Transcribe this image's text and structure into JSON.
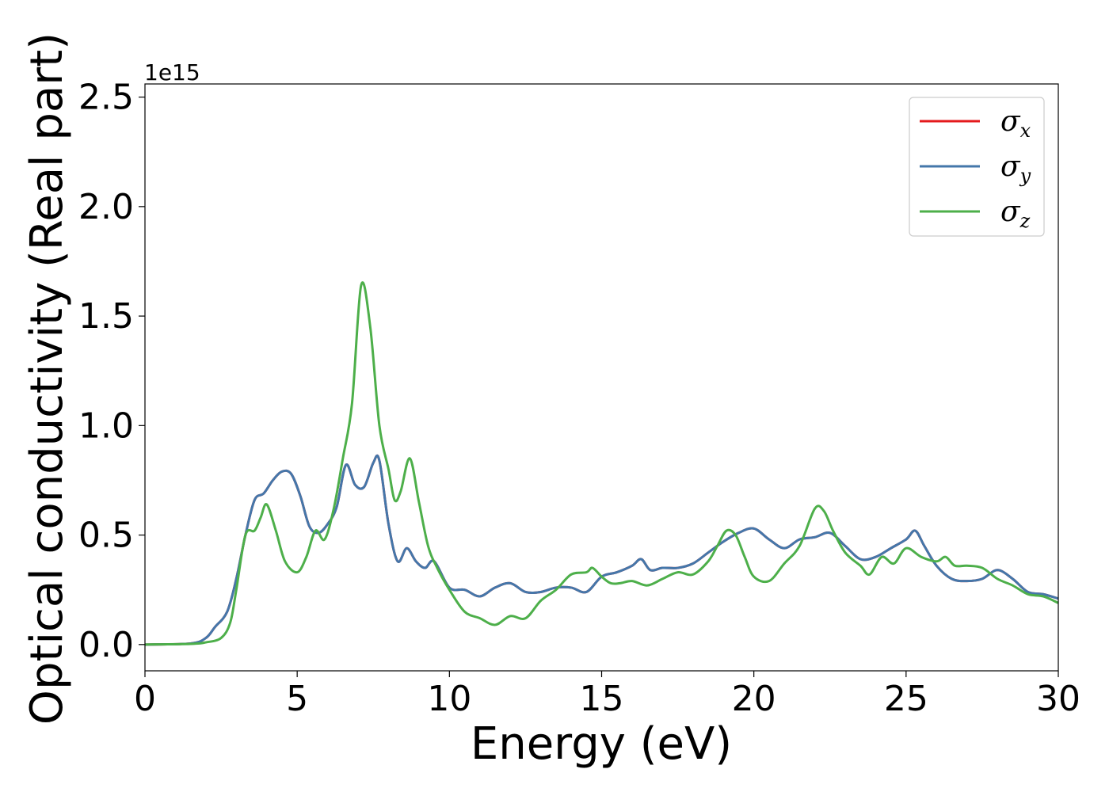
{
  "chart_data": {
    "type": "line",
    "xlabel": "Energy (eV)",
    "ylabel": "Optical conductivity (Real part)",
    "y_offset_label": "1e15",
    "xlim": [
      0,
      30
    ],
    "ylim": [
      -0.12,
      2.56
    ],
    "x_ticks": [
      0,
      5,
      10,
      15,
      20,
      25,
      30
    ],
    "x_tick_labels": [
      "0",
      "5",
      "10",
      "15",
      "20",
      "25",
      "30"
    ],
    "y_ticks": [
      0.0,
      0.5,
      1.0,
      1.5,
      2.0,
      2.5
    ],
    "y_tick_labels": [
      "0.0",
      "0.5",
      "1.0",
      "1.5",
      "2.0",
      "2.5"
    ],
    "grid": false,
    "legend_position": "top-right",
    "series": [
      {
        "name": "σx",
        "legend_main": "σ",
        "legend_sub": "x",
        "color": "#e41a1c",
        "data": [
          [
            0,
            0
          ],
          [
            1.5,
            0.005
          ],
          [
            2.0,
            0.03
          ],
          [
            2.3,
            0.08
          ],
          [
            2.7,
            0.15
          ],
          [
            3.0,
            0.3
          ],
          [
            3.3,
            0.5
          ],
          [
            3.6,
            0.66
          ],
          [
            3.9,
            0.69
          ],
          [
            4.2,
            0.75
          ],
          [
            4.5,
            0.79
          ],
          [
            4.8,
            0.78
          ],
          [
            5.1,
            0.68
          ],
          [
            5.4,
            0.54
          ],
          [
            5.7,
            0.51
          ],
          [
            6.0,
            0.55
          ],
          [
            6.3,
            0.63
          ],
          [
            6.6,
            0.82
          ],
          [
            6.9,
            0.73
          ],
          [
            7.2,
            0.72
          ],
          [
            7.5,
            0.83
          ],
          [
            7.7,
            0.84
          ],
          [
            8.0,
            0.55
          ],
          [
            8.3,
            0.38
          ],
          [
            8.6,
            0.44
          ],
          [
            8.9,
            0.38
          ],
          [
            9.2,
            0.35
          ],
          [
            9.5,
            0.38
          ],
          [
            10.0,
            0.26
          ],
          [
            10.5,
            0.25
          ],
          [
            11.0,
            0.22
          ],
          [
            11.5,
            0.26
          ],
          [
            12.0,
            0.28
          ],
          [
            12.5,
            0.24
          ],
          [
            13.0,
            0.24
          ],
          [
            13.5,
            0.26
          ],
          [
            14.0,
            0.26
          ],
          [
            14.5,
            0.24
          ],
          [
            15.0,
            0.31
          ],
          [
            15.5,
            0.33
          ],
          [
            16.0,
            0.36
          ],
          [
            16.3,
            0.39
          ],
          [
            16.6,
            0.34
          ],
          [
            17.0,
            0.35
          ],
          [
            17.5,
            0.35
          ],
          [
            18.0,
            0.37
          ],
          [
            18.5,
            0.42
          ],
          [
            19.0,
            0.47
          ],
          [
            19.5,
            0.51
          ],
          [
            20.0,
            0.53
          ],
          [
            20.5,
            0.48
          ],
          [
            21.0,
            0.44
          ],
          [
            21.5,
            0.48
          ],
          [
            22.0,
            0.49
          ],
          [
            22.5,
            0.51
          ],
          [
            23.0,
            0.45
          ],
          [
            23.5,
            0.39
          ],
          [
            24.0,
            0.4
          ],
          [
            24.5,
            0.44
          ],
          [
            25.0,
            0.48
          ],
          [
            25.3,
            0.52
          ],
          [
            25.6,
            0.45
          ],
          [
            26.0,
            0.36
          ],
          [
            26.5,
            0.3
          ],
          [
            27.0,
            0.29
          ],
          [
            27.5,
            0.3
          ],
          [
            28.0,
            0.34
          ],
          [
            28.5,
            0.3
          ],
          [
            29.0,
            0.24
          ],
          [
            29.5,
            0.23
          ],
          [
            30.0,
            0.21
          ]
        ]
      },
      {
        "name": "σy",
        "legend_main": "σ",
        "legend_sub": "y",
        "color": "#4477aa",
        "data": [
          [
            0,
            0
          ],
          [
            1.5,
            0.005
          ],
          [
            2.0,
            0.03
          ],
          [
            2.3,
            0.08
          ],
          [
            2.7,
            0.15
          ],
          [
            3.0,
            0.3
          ],
          [
            3.3,
            0.5
          ],
          [
            3.6,
            0.66
          ],
          [
            3.9,
            0.69
          ],
          [
            4.2,
            0.75
          ],
          [
            4.5,
            0.79
          ],
          [
            4.8,
            0.78
          ],
          [
            5.1,
            0.68
          ],
          [
            5.4,
            0.54
          ],
          [
            5.7,
            0.51
          ],
          [
            6.0,
            0.55
          ],
          [
            6.3,
            0.63
          ],
          [
            6.6,
            0.82
          ],
          [
            6.9,
            0.73
          ],
          [
            7.2,
            0.72
          ],
          [
            7.5,
            0.83
          ],
          [
            7.7,
            0.84
          ],
          [
            8.0,
            0.55
          ],
          [
            8.3,
            0.38
          ],
          [
            8.6,
            0.44
          ],
          [
            8.9,
            0.38
          ],
          [
            9.2,
            0.35
          ],
          [
            9.5,
            0.38
          ],
          [
            10.0,
            0.26
          ],
          [
            10.5,
            0.25
          ],
          [
            11.0,
            0.22
          ],
          [
            11.5,
            0.26
          ],
          [
            12.0,
            0.28
          ],
          [
            12.5,
            0.24
          ],
          [
            13.0,
            0.24
          ],
          [
            13.5,
            0.26
          ],
          [
            14.0,
            0.26
          ],
          [
            14.5,
            0.24
          ],
          [
            15.0,
            0.31
          ],
          [
            15.5,
            0.33
          ],
          [
            16.0,
            0.36
          ],
          [
            16.3,
            0.39
          ],
          [
            16.6,
            0.34
          ],
          [
            17.0,
            0.35
          ],
          [
            17.5,
            0.35
          ],
          [
            18.0,
            0.37
          ],
          [
            18.5,
            0.42
          ],
          [
            19.0,
            0.47
          ],
          [
            19.5,
            0.51
          ],
          [
            20.0,
            0.53
          ],
          [
            20.5,
            0.48
          ],
          [
            21.0,
            0.44
          ],
          [
            21.5,
            0.48
          ],
          [
            22.0,
            0.49
          ],
          [
            22.5,
            0.51
          ],
          [
            23.0,
            0.45
          ],
          [
            23.5,
            0.39
          ],
          [
            24.0,
            0.4
          ],
          [
            24.5,
            0.44
          ],
          [
            25.0,
            0.48
          ],
          [
            25.3,
            0.52
          ],
          [
            25.6,
            0.45
          ],
          [
            26.0,
            0.36
          ],
          [
            26.5,
            0.3
          ],
          [
            27.0,
            0.29
          ],
          [
            27.5,
            0.3
          ],
          [
            28.0,
            0.34
          ],
          [
            28.5,
            0.3
          ],
          [
            29.0,
            0.24
          ],
          [
            29.5,
            0.23
          ],
          [
            30.0,
            0.21
          ]
        ]
      },
      {
        "name": "σz",
        "legend_main": "σ",
        "legend_sub": "z",
        "color": "#4daf4a",
        "data": [
          [
            0,
            0
          ],
          [
            1.5,
            0.003
          ],
          [
            2.0,
            0.01
          ],
          [
            2.5,
            0.03
          ],
          [
            2.8,
            0.1
          ],
          [
            3.0,
            0.25
          ],
          [
            3.3,
            0.5
          ],
          [
            3.6,
            0.52
          ],
          [
            3.8,
            0.58
          ],
          [
            4.0,
            0.64
          ],
          [
            4.3,
            0.52
          ],
          [
            4.6,
            0.38
          ],
          [
            5.0,
            0.33
          ],
          [
            5.3,
            0.4
          ],
          [
            5.6,
            0.52
          ],
          [
            5.9,
            0.48
          ],
          [
            6.2,
            0.62
          ],
          [
            6.5,
            0.85
          ],
          [
            6.8,
            1.1
          ],
          [
            7.1,
            1.64
          ],
          [
            7.4,
            1.45
          ],
          [
            7.7,
            1.0
          ],
          [
            8.0,
            0.8
          ],
          [
            8.2,
            0.66
          ],
          [
            8.4,
            0.7
          ],
          [
            8.7,
            0.85
          ],
          [
            9.0,
            0.65
          ],
          [
            9.3,
            0.45
          ],
          [
            9.6,
            0.35
          ],
          [
            10.0,
            0.25
          ],
          [
            10.5,
            0.15
          ],
          [
            11.0,
            0.12
          ],
          [
            11.5,
            0.09
          ],
          [
            12.0,
            0.13
          ],
          [
            12.5,
            0.12
          ],
          [
            13.0,
            0.2
          ],
          [
            13.5,
            0.25
          ],
          [
            14.0,
            0.32
          ],
          [
            14.5,
            0.33
          ],
          [
            14.7,
            0.35
          ],
          [
            15.0,
            0.31
          ],
          [
            15.3,
            0.28
          ],
          [
            15.6,
            0.28
          ],
          [
            16.0,
            0.29
          ],
          [
            16.5,
            0.27
          ],
          [
            17.0,
            0.3
          ],
          [
            17.5,
            0.33
          ],
          [
            18.0,
            0.32
          ],
          [
            18.5,
            0.38
          ],
          [
            18.8,
            0.45
          ],
          [
            19.1,
            0.52
          ],
          [
            19.4,
            0.5
          ],
          [
            19.7,
            0.4
          ],
          [
            20.0,
            0.31
          ],
          [
            20.5,
            0.29
          ],
          [
            21.0,
            0.37
          ],
          [
            21.5,
            0.45
          ],
          [
            22.0,
            0.62
          ],
          [
            22.3,
            0.61
          ],
          [
            22.6,
            0.52
          ],
          [
            23.0,
            0.42
          ],
          [
            23.5,
            0.36
          ],
          [
            23.8,
            0.32
          ],
          [
            24.2,
            0.4
          ],
          [
            24.6,
            0.37
          ],
          [
            25.0,
            0.44
          ],
          [
            25.5,
            0.4
          ],
          [
            26.0,
            0.38
          ],
          [
            26.3,
            0.4
          ],
          [
            26.6,
            0.36
          ],
          [
            27.0,
            0.36
          ],
          [
            27.5,
            0.35
          ],
          [
            28.0,
            0.3
          ],
          [
            28.5,
            0.27
          ],
          [
            29.0,
            0.23
          ],
          [
            29.5,
            0.22
          ],
          [
            30.0,
            0.19
          ]
        ]
      }
    ]
  }
}
